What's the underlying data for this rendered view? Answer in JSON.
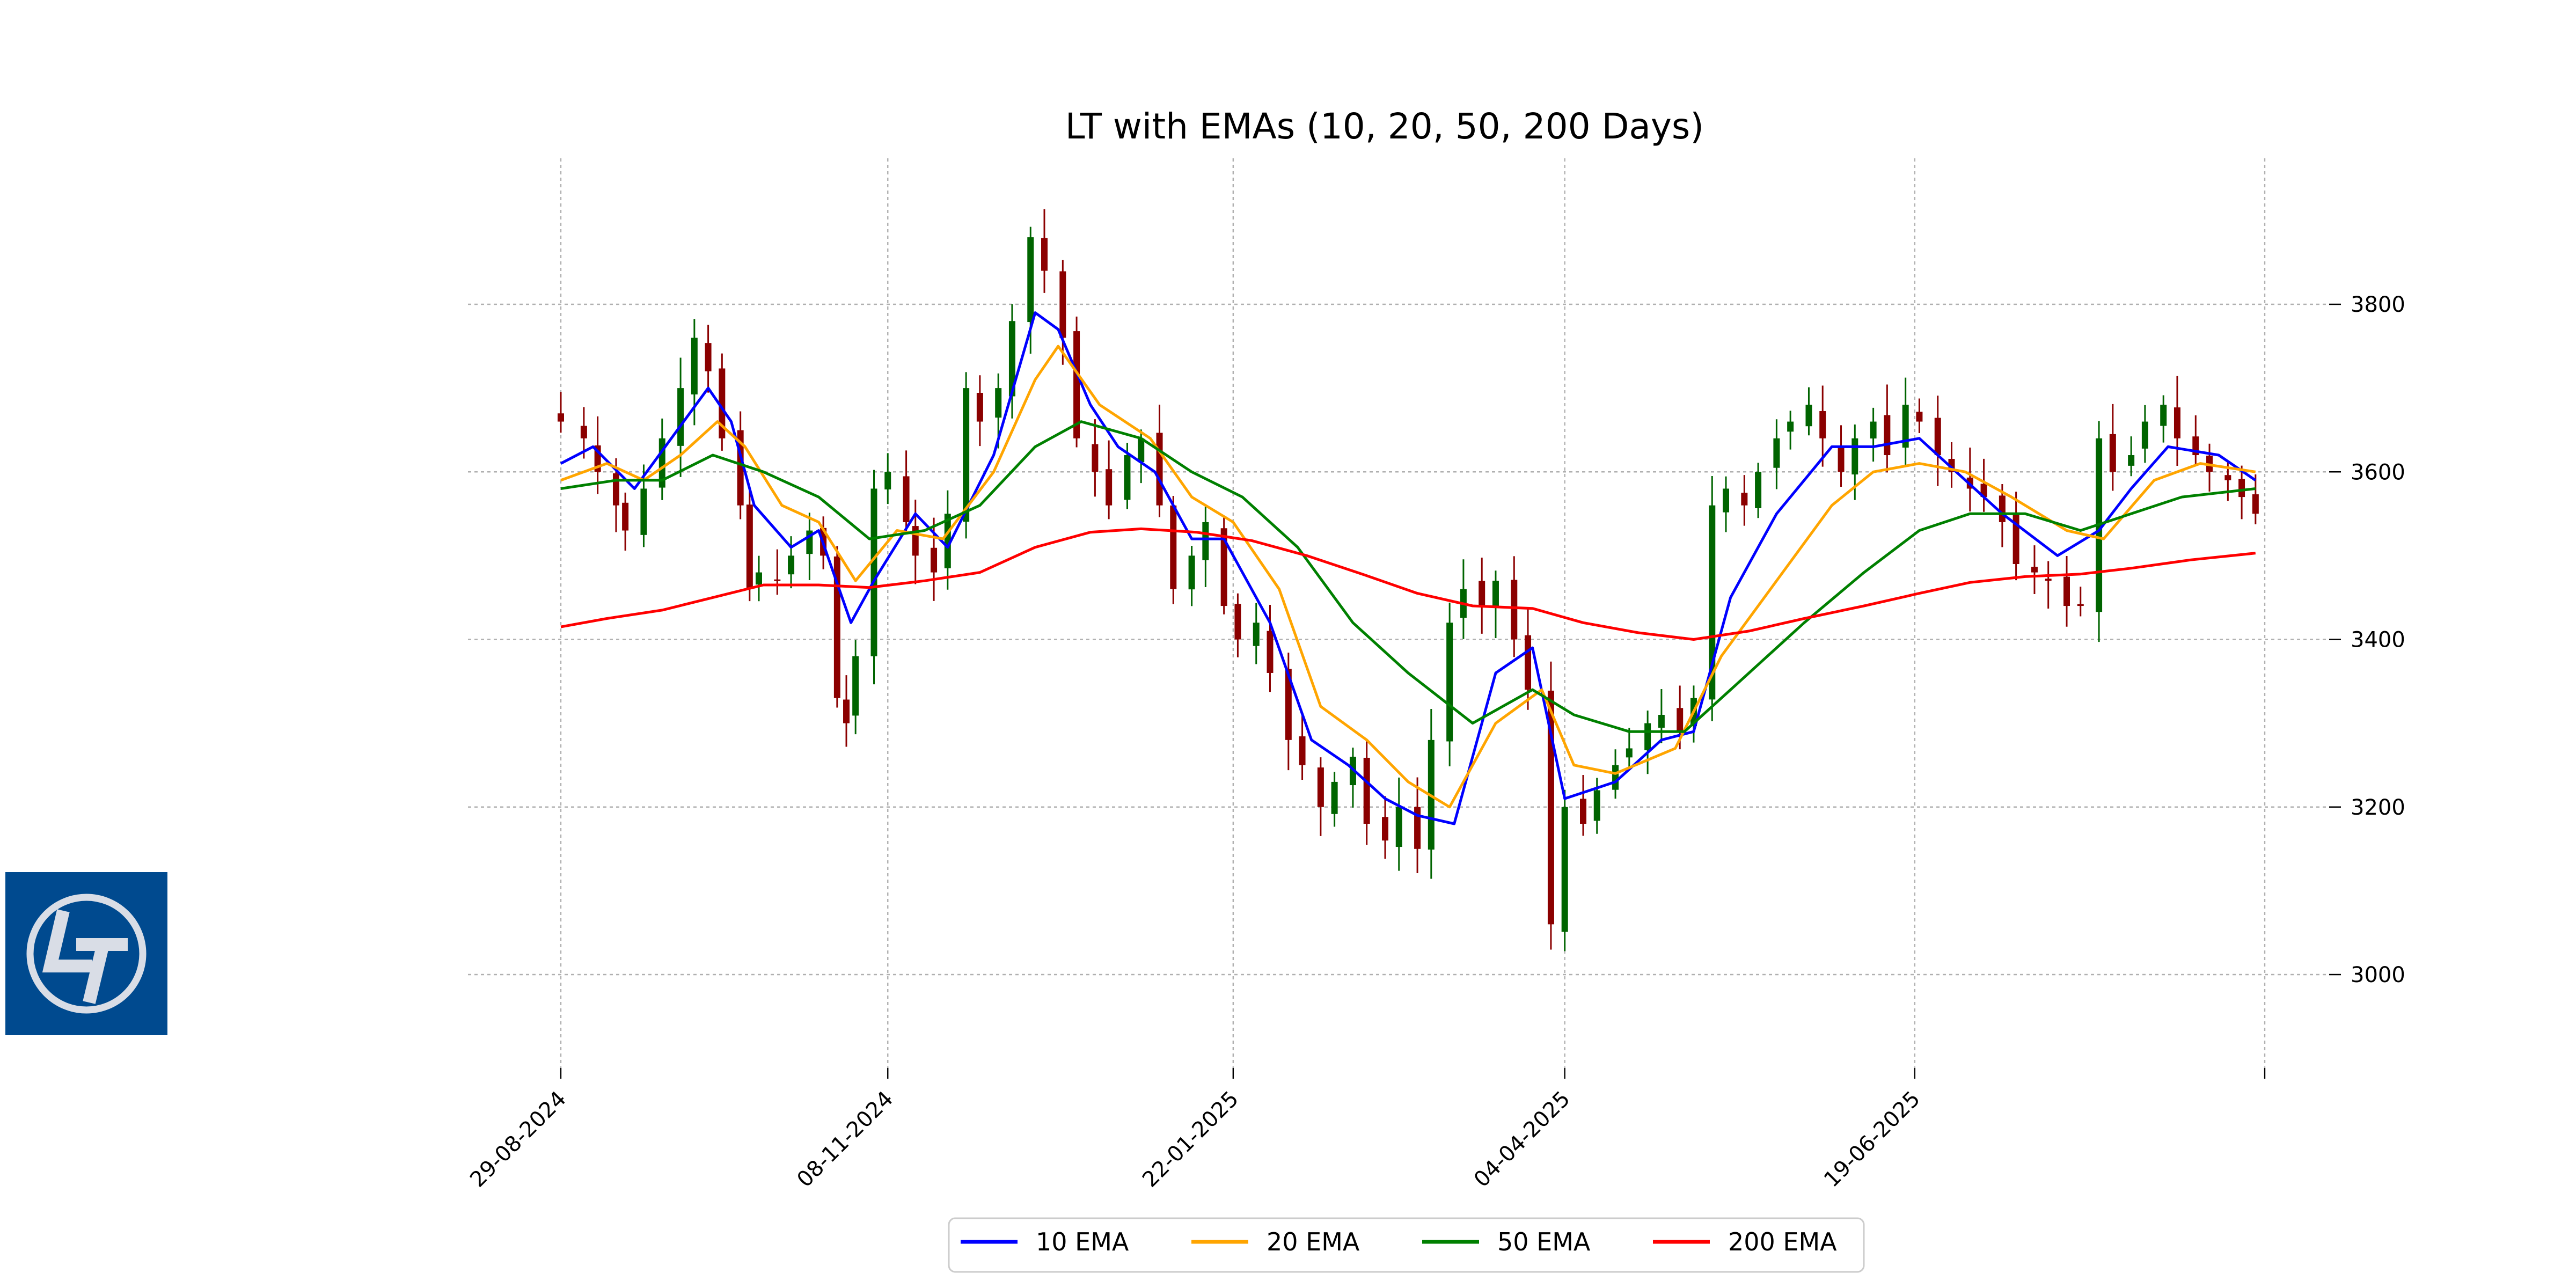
{
  "chart_data": {
    "type": "candlestick",
    "title": "LT with EMAs (10, 20, 50, 200 Days)",
    "xlabel": "",
    "ylabel": "",
    "ylim": [
      2900,
      3930
    ],
    "x_range": [
      "2024-08-29",
      "2025-09-03"
    ],
    "grid": true,
    "y_axis_side": "right",
    "yticks": [
      3000,
      3200,
      3400,
      3600,
      3800
    ],
    "xticks": [
      {
        "date": "2024-08-29",
        "label": "29-08-2024"
      },
      {
        "date": "2024-11-08",
        "label": "08-11-2024"
      },
      {
        "date": "2025-01-22",
        "label": "22-01-2025"
      },
      {
        "date": "2025-04-04",
        "label": "04-04-2025"
      },
      {
        "date": "2025-06-19",
        "label": "19-06-2025"
      },
      {
        "date": "2025-09-03",
        "label": ""
      }
    ],
    "ohlc_approx_close": [
      [
        "2024-08-29",
        3660
      ],
      [
        "2024-09-03",
        3640
      ],
      [
        "2024-09-06",
        3600
      ],
      [
        "2024-09-10",
        3560
      ],
      [
        "2024-09-12",
        3530
      ],
      [
        "2024-09-16",
        3580
      ],
      [
        "2024-09-20",
        3640
      ],
      [
        "2024-09-24",
        3700
      ],
      [
        "2024-09-27",
        3760
      ],
      [
        "2024-09-30",
        3720
      ],
      [
        "2024-10-03",
        3640
      ],
      [
        "2024-10-07",
        3560
      ],
      [
        "2024-10-09",
        3460
      ],
      [
        "2024-10-11",
        3480
      ],
      [
        "2024-10-15",
        3470
      ],
      [
        "2024-10-18",
        3500
      ],
      [
        "2024-10-22",
        3530
      ],
      [
        "2024-10-25",
        3500
      ],
      [
        "2024-10-28",
        3330
      ],
      [
        "2024-10-30",
        3300
      ],
      [
        "2024-11-01",
        3380
      ],
      [
        "2024-11-05",
        3580
      ],
      [
        "2024-11-08",
        3600
      ],
      [
        "2024-11-12",
        3540
      ],
      [
        "2024-11-14",
        3500
      ],
      [
        "2024-11-18",
        3480
      ],
      [
        "2024-11-21",
        3550
      ],
      [
        "2024-11-25",
        3700
      ],
      [
        "2024-11-28",
        3660
      ],
      [
        "2024-12-02",
        3700
      ],
      [
        "2024-12-05",
        3780
      ],
      [
        "2024-12-09",
        3880
      ],
      [
        "2024-12-12",
        3840
      ],
      [
        "2024-12-16",
        3760
      ],
      [
        "2024-12-19",
        3640
      ],
      [
        "2024-12-23",
        3600
      ],
      [
        "2024-12-26",
        3560
      ],
      [
        "2024-12-30",
        3620
      ],
      [
        "2025-01-02",
        3640
      ],
      [
        "2025-01-06",
        3560
      ],
      [
        "2025-01-09",
        3460
      ],
      [
        "2025-01-13",
        3500
      ],
      [
        "2025-01-16",
        3540
      ],
      [
        "2025-01-20",
        3440
      ],
      [
        "2025-01-23",
        3400
      ],
      [
        "2025-01-27",
        3420
      ],
      [
        "2025-01-30",
        3360
      ],
      [
        "2025-02-03",
        3280
      ],
      [
        "2025-02-06",
        3250
      ],
      [
        "2025-02-10",
        3200
      ],
      [
        "2025-02-13",
        3230
      ],
      [
        "2025-02-17",
        3260
      ],
      [
        "2025-02-20",
        3180
      ],
      [
        "2025-02-24",
        3160
      ],
      [
        "2025-02-27",
        3200
      ],
      [
        "2025-03-03",
        3150
      ],
      [
        "2025-03-06",
        3280
      ],
      [
        "2025-03-10",
        3420
      ],
      [
        "2025-03-13",
        3460
      ],
      [
        "2025-03-17",
        3440
      ],
      [
        "2025-03-20",
        3470
      ],
      [
        "2025-03-24",
        3400
      ],
      [
        "2025-03-27",
        3340
      ],
      [
        "2025-04-01",
        3060
      ],
      [
        "2025-04-04",
        3200
      ],
      [
        "2025-04-08",
        3180
      ],
      [
        "2025-04-11",
        3220
      ],
      [
        "2025-04-15",
        3250
      ],
      [
        "2025-04-18",
        3270
      ],
      [
        "2025-04-22",
        3300
      ],
      [
        "2025-04-25",
        3310
      ],
      [
        "2025-04-29",
        3290
      ],
      [
        "2025-05-02",
        3330
      ],
      [
        "2025-05-06",
        3560
      ],
      [
        "2025-05-09",
        3580
      ],
      [
        "2025-05-13",
        3560
      ],
      [
        "2025-05-16",
        3600
      ],
      [
        "2025-05-20",
        3640
      ],
      [
        "2025-05-23",
        3660
      ],
      [
        "2025-05-27",
        3680
      ],
      [
        "2025-05-30",
        3640
      ],
      [
        "2025-06-03",
        3600
      ],
      [
        "2025-06-06",
        3640
      ],
      [
        "2025-06-10",
        3660
      ],
      [
        "2025-06-13",
        3620
      ],
      [
        "2025-06-17",
        3680
      ],
      [
        "2025-06-20",
        3660
      ],
      [
        "2025-06-24",
        3620
      ],
      [
        "2025-06-27",
        3600
      ],
      [
        "2025-07-01",
        3580
      ],
      [
        "2025-07-04",
        3570
      ],
      [
        "2025-07-08",
        3540
      ],
      [
        "2025-07-11",
        3490
      ],
      [
        "2025-07-15",
        3480
      ],
      [
        "2025-07-18",
        3470
      ],
      [
        "2025-07-22",
        3440
      ],
      [
        "2025-07-25",
        3440
      ],
      [
        "2025-07-29",
        3640
      ],
      [
        "2025-08-01",
        3600
      ],
      [
        "2025-08-05",
        3620
      ],
      [
        "2025-08-08",
        3660
      ],
      [
        "2025-08-12",
        3680
      ],
      [
        "2025-08-15",
        3640
      ],
      [
        "2025-08-19",
        3620
      ],
      [
        "2025-08-22",
        3600
      ],
      [
        "2025-08-26",
        3590
      ],
      [
        "2025-08-29",
        3570
      ],
      [
        "2025-09-01",
        3550
      ]
    ],
    "candle_colors": {
      "up": "#006400",
      "down": "#8b0000"
    },
    "series": [
      {
        "name": "10 EMA",
        "color": "#0000ff",
        "points": [
          [
            "2024-08-29",
            3610
          ],
          [
            "2024-09-05",
            3630
          ],
          [
            "2024-09-14",
            3580
          ],
          [
            "2024-09-22",
            3640
          ],
          [
            "2024-09-30",
            3700
          ],
          [
            "2024-10-05",
            3660
          ],
          [
            "2024-10-10",
            3560
          ],
          [
            "2024-10-18",
            3510
          ],
          [
            "2024-10-24",
            3530
          ],
          [
            "2024-10-31",
            3420
          ],
          [
            "2024-11-05",
            3470
          ],
          [
            "2024-11-14",
            3550
          ],
          [
            "2024-11-21",
            3510
          ],
          [
            "2024-12-01",
            3620
          ],
          [
            "2024-12-10",
            3790
          ],
          [
            "2024-12-15",
            3770
          ],
          [
            "2024-12-22",
            3680
          ],
          [
            "2024-12-28",
            3630
          ],
          [
            "2025-01-05",
            3600
          ],
          [
            "2025-01-13",
            3520
          ],
          [
            "2025-01-20",
            3520
          ],
          [
            "2025-01-30",
            3420
          ],
          [
            "2025-02-08",
            3280
          ],
          [
            "2025-02-16",
            3250
          ],
          [
            "2025-02-24",
            3210
          ],
          [
            "2025-03-03",
            3190
          ],
          [
            "2025-03-11",
            3180
          ],
          [
            "2025-03-20",
            3360
          ],
          [
            "2025-03-28",
            3390
          ],
          [
            "2025-04-04",
            3210
          ],
          [
            "2025-04-15",
            3230
          ],
          [
            "2025-04-25",
            3280
          ],
          [
            "2025-05-02",
            3290
          ],
          [
            "2025-05-10",
            3450
          ],
          [
            "2025-05-20",
            3550
          ],
          [
            "2025-06-01",
            3630
          ],
          [
            "2025-06-10",
            3630
          ],
          [
            "2025-06-20",
            3640
          ],
          [
            "2025-06-28",
            3600
          ],
          [
            "2025-07-08",
            3550
          ],
          [
            "2025-07-20",
            3500
          ],
          [
            "2025-07-29",
            3530
          ],
          [
            "2025-08-05",
            3580
          ],
          [
            "2025-08-13",
            3630
          ],
          [
            "2025-08-24",
            3620
          ],
          [
            "2025-09-01",
            3590
          ]
        ]
      },
      {
        "name": "20 EMA",
        "color": "#ffa500",
        "points": [
          [
            "2024-08-29",
            3590
          ],
          [
            "2024-09-08",
            3610
          ],
          [
            "2024-09-16",
            3590
          ],
          [
            "2024-09-24",
            3620
          ],
          [
            "2024-10-02",
            3660
          ],
          [
            "2024-10-08",
            3630
          ],
          [
            "2024-10-16",
            3560
          ],
          [
            "2024-10-24",
            3540
          ],
          [
            "2024-11-01",
            3470
          ],
          [
            "2024-11-10",
            3530
          ],
          [
            "2024-11-20",
            3520
          ],
          [
            "2024-12-01",
            3600
          ],
          [
            "2024-12-10",
            3710
          ],
          [
            "2024-12-15",
            3750
          ],
          [
            "2024-12-24",
            3680
          ],
          [
            "2025-01-04",
            3640
          ],
          [
            "2025-01-13",
            3570
          ],
          [
            "2025-01-22",
            3540
          ],
          [
            "2025-02-01",
            3460
          ],
          [
            "2025-02-10",
            3320
          ],
          [
            "2025-02-20",
            3280
          ],
          [
            "2025-03-01",
            3230
          ],
          [
            "2025-03-10",
            3200
          ],
          [
            "2025-03-20",
            3300
          ],
          [
            "2025-03-30",
            3340
          ],
          [
            "2025-04-06",
            3250
          ],
          [
            "2025-04-15",
            3240
          ],
          [
            "2025-04-28",
            3270
          ],
          [
            "2025-05-08",
            3380
          ],
          [
            "2025-05-20",
            3470
          ],
          [
            "2025-06-01",
            3560
          ],
          [
            "2025-06-10",
            3600
          ],
          [
            "2025-06-20",
            3610
          ],
          [
            "2025-06-30",
            3600
          ],
          [
            "2025-07-10",
            3570
          ],
          [
            "2025-07-22",
            3530
          ],
          [
            "2025-07-30",
            3520
          ],
          [
            "2025-08-10",
            3590
          ],
          [
            "2025-08-20",
            3610
          ],
          [
            "2025-09-01",
            3600
          ]
        ]
      },
      {
        "name": "50 EMA",
        "color": "#008000",
        "points": [
          [
            "2024-08-29",
            3580
          ],
          [
            "2024-09-10",
            3590
          ],
          [
            "2024-09-20",
            3590
          ],
          [
            "2024-10-01",
            3620
          ],
          [
            "2024-10-12",
            3600
          ],
          [
            "2024-10-24",
            3570
          ],
          [
            "2024-11-04",
            3520
          ],
          [
            "2024-11-16",
            3530
          ],
          [
            "2024-11-28",
            3560
          ],
          [
            "2024-12-10",
            3630
          ],
          [
            "2024-12-20",
            3660
          ],
          [
            "2025-01-02",
            3640
          ],
          [
            "2025-01-13",
            3600
          ],
          [
            "2025-01-24",
            3570
          ],
          [
            "2025-02-05",
            3510
          ],
          [
            "2025-02-17",
            3420
          ],
          [
            "2025-03-01",
            3360
          ],
          [
            "2025-03-15",
            3300
          ],
          [
            "2025-03-28",
            3340
          ],
          [
            "2025-04-06",
            3310
          ],
          [
            "2025-04-18",
            3290
          ],
          [
            "2025-04-30",
            3290
          ],
          [
            "2025-05-12",
            3350
          ],
          [
            "2025-05-26",
            3420
          ],
          [
            "2025-06-08",
            3480
          ],
          [
            "2025-06-20",
            3530
          ],
          [
            "2025-07-01",
            3550
          ],
          [
            "2025-07-13",
            3550
          ],
          [
            "2025-07-25",
            3530
          ],
          [
            "2025-08-05",
            3550
          ],
          [
            "2025-08-16",
            3570
          ],
          [
            "2025-09-01",
            3580
          ]
        ]
      },
      {
        "name": "200 EMA",
        "color": "#ff0000",
        "points": [
          [
            "2024-08-29",
            3415
          ],
          [
            "2024-09-08",
            3425
          ],
          [
            "2024-09-20",
            3435
          ],
          [
            "2024-10-01",
            3450
          ],
          [
            "2024-10-12",
            3465
          ],
          [
            "2024-10-24",
            3465
          ],
          [
            "2024-11-04",
            3462
          ],
          [
            "2024-11-16",
            3470
          ],
          [
            "2024-11-28",
            3480
          ],
          [
            "2024-12-10",
            3510
          ],
          [
            "2024-12-22",
            3528
          ],
          [
            "2025-01-02",
            3532
          ],
          [
            "2025-01-14",
            3528
          ],
          [
            "2025-01-26",
            3518
          ],
          [
            "2025-02-07",
            3500
          ],
          [
            "2025-02-19",
            3478
          ],
          [
            "2025-03-03",
            3455
          ],
          [
            "2025-03-15",
            3440
          ],
          [
            "2025-03-28",
            3437
          ],
          [
            "2025-04-08",
            3420
          ],
          [
            "2025-04-20",
            3408
          ],
          [
            "2025-05-02",
            3400
          ],
          [
            "2025-05-14",
            3410
          ],
          [
            "2025-05-26",
            3425
          ],
          [
            "2025-06-08",
            3440
          ],
          [
            "2025-06-20",
            3455
          ],
          [
            "2025-07-01",
            3468
          ],
          [
            "2025-07-13",
            3475
          ],
          [
            "2025-07-25",
            3478
          ],
          [
            "2025-08-05",
            3485
          ],
          [
            "2025-08-18",
            3495
          ],
          [
            "2025-09-01",
            3503
          ]
        ]
      }
    ],
    "legend": {
      "position": "bottom-center",
      "entries": [
        {
          "label": "10 EMA",
          "color": "#0000ff"
        },
        {
          "label": "20 EMA",
          "color": "#ffa500"
        },
        {
          "label": "50 EMA",
          "color": "#008000"
        },
        {
          "label": "200 EMA",
          "color": "#ff0000"
        }
      ]
    }
  },
  "logo": {
    "name": "lt-logo",
    "background": "#004a8f",
    "foreground": "#d9dde6"
  }
}
